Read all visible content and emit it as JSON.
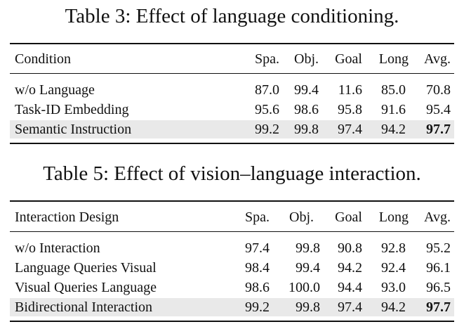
{
  "tables": [
    {
      "caption": "Table 3: Effect of language conditioning.",
      "header": [
        "Condition",
        "Spa.",
        "Obj.",
        "Goal",
        "Long",
        "Avg."
      ],
      "rows": [
        {
          "name": "w/o Language",
          "values": [
            "87.0",
            "99.4",
            "11.6",
            "85.0",
            "70.8"
          ],
          "highlight": false
        },
        {
          "name": "Task-ID Embedding",
          "values": [
            "95.6",
            "98.6",
            "95.8",
            "91.6",
            "95.4"
          ],
          "highlight": false
        },
        {
          "name": "Semantic Instruction",
          "values": [
            "99.2",
            "99.8",
            "97.4",
            "94.2",
            "97.7"
          ],
          "highlight": true
        }
      ]
    },
    {
      "caption": "Table 5: Effect of vision–language interaction.",
      "header": [
        "Interaction Design",
        "Spa.",
        "Obj.",
        "Goal",
        "Long",
        "Avg."
      ],
      "rows": [
        {
          "name": "w/o Interaction",
          "values": [
            "97.4",
            "99.8",
            "90.8",
            "92.8",
            "95.2"
          ],
          "highlight": false
        },
        {
          "name": "Language Queries Visual",
          "values": [
            "98.4",
            "99.4",
            "94.2",
            "92.4",
            "96.1"
          ],
          "highlight": false
        },
        {
          "name": "Visual Queries Language",
          "values": [
            "98.6",
            "100.0",
            "94.4",
            "93.0",
            "96.5"
          ],
          "highlight": false
        },
        {
          "name": "Bidirectional Interaction",
          "values": [
            "99.2",
            "99.8",
            "97.4",
            "94.2",
            "97.7"
          ],
          "highlight": true
        }
      ]
    }
  ],
  "colors": {
    "highlight_row": "#e9e9e9",
    "text": "#111111"
  }
}
